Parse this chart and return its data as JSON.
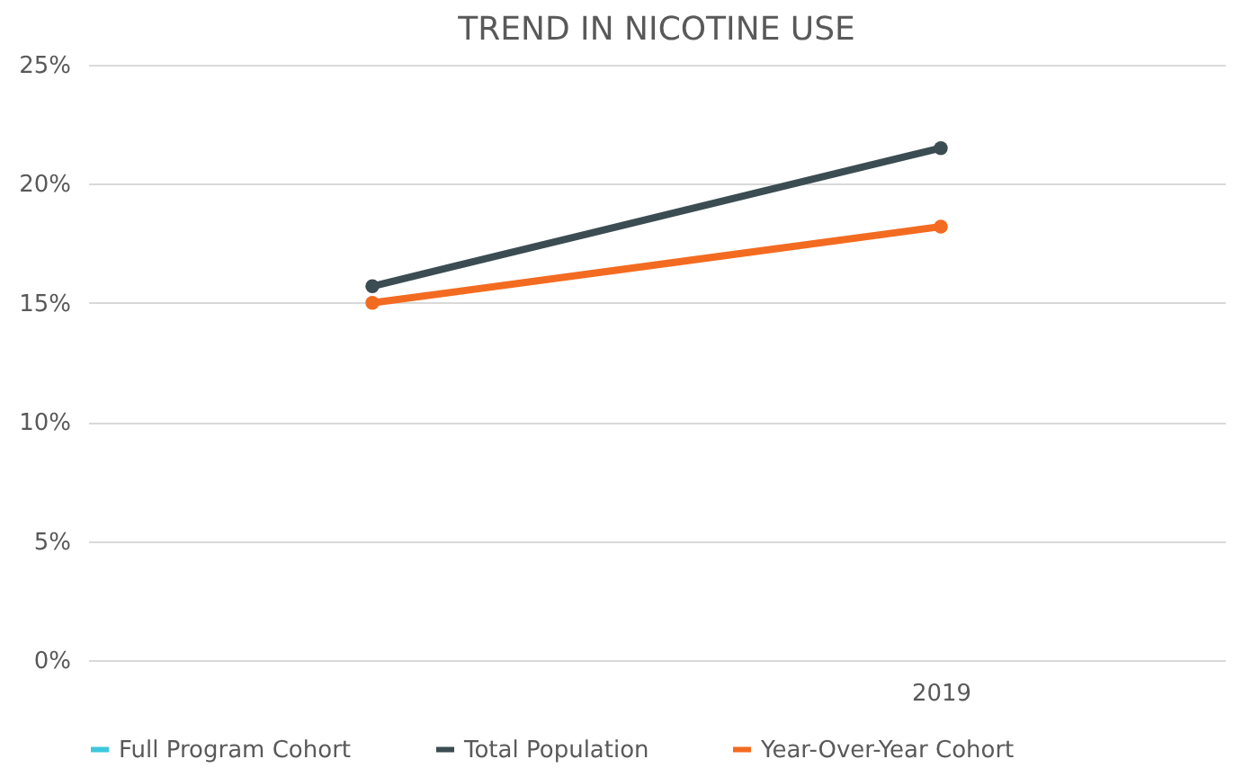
{
  "chart_data": {
    "type": "line",
    "title": "TREND IN NICOTINE USE",
    "categories": [
      null,
      "2019"
    ],
    "series": [
      {
        "name": "Full Program Cohort",
        "color": "#3ec8dc",
        "values": [
          null,
          null
        ]
      },
      {
        "name": "Total Population",
        "color": "#3b4c52",
        "values": [
          15.7,
          21.5
        ]
      },
      {
        "name": "Year-Over-Year Cohort",
        "color": "#f36b21",
        "values": [
          15.0,
          18.2
        ]
      }
    ],
    "ylim": [
      0,
      25
    ],
    "yticks": [
      {
        "value": 0,
        "label": "0%"
      },
      {
        "value": 5,
        "label": "5%"
      },
      {
        "value": 10,
        "label": "10%"
      },
      {
        "value": 15,
        "label": "15%"
      },
      {
        "value": 20,
        "label": "20%"
      },
      {
        "value": 25,
        "label": "25%"
      }
    ],
    "grid": "y",
    "legend": "bottom",
    "marker": "circle",
    "line_style": "solid"
  }
}
